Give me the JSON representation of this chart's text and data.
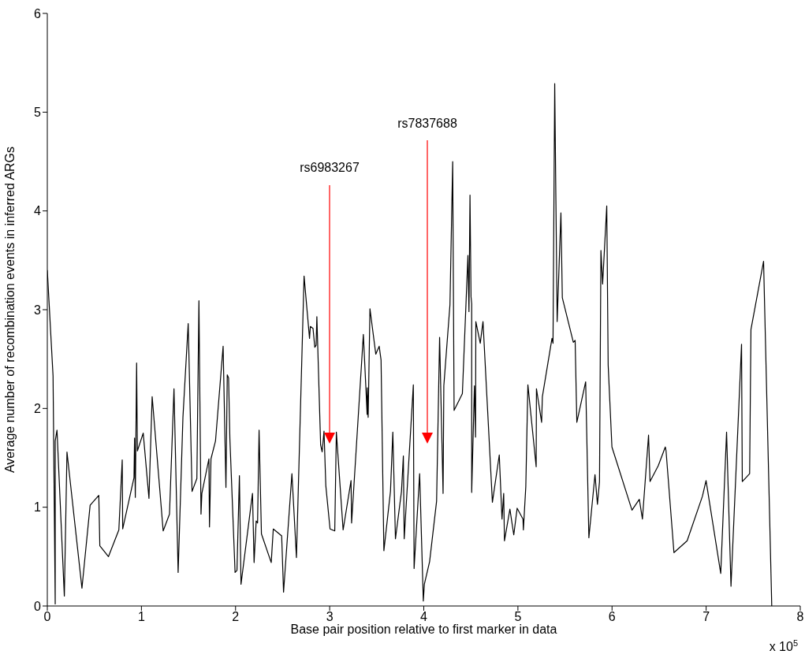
{
  "chart_data": {
    "type": "line",
    "xlabel": "Base pair position relative to first marker in data",
    "ylabel": "Average number of recombination events in inferred ARGs",
    "x": [
      0,
      0.061,
      0.084,
      0.084,
      0.103,
      0.181,
      0.209,
      0.368,
      0.455,
      0.547,
      0.558,
      0.65,
      0.76,
      0.796,
      0.801,
      0.921,
      0.927,
      0.935,
      0.949,
      0.957,
      1.019,
      1.08,
      1.114,
      1.231,
      1.298,
      1.346,
      1.39,
      1.441,
      1.497,
      1.538,
      1.589,
      1.611,
      1.633,
      1.642,
      1.717,
      1.723,
      1.739,
      1.787,
      1.868,
      1.898,
      1.912,
      1.926,
      1.94,
      1.995,
      2.015,
      2.041,
      2.058,
      2.18,
      2.197,
      2.219,
      2.234,
      2.25,
      2.275,
      2.379,
      2.401,
      2.49,
      2.51,
      2.599,
      2.647,
      2.728,
      2.786,
      2.795,
      2.823,
      2.842,
      2.856,
      2.864,
      2.904,
      2.92,
      2.94,
      2.959,
      3.004,
      3.054,
      3.071,
      3.143,
      3.227,
      3.233,
      3.358,
      3.398,
      3.4,
      3.409,
      3.428,
      3.49,
      3.526,
      3.546,
      3.576,
      3.646,
      3.671,
      3.699,
      3.763,
      3.783,
      3.792,
      3.889,
      3.897,
      3.956,
      3.995,
      4.006,
      4.062,
      4.136,
      4.168,
      4.205,
      4.213,
      4.278,
      4.307,
      4.322,
      4.41,
      4.469,
      4.48,
      4.491,
      4.502,
      4.509,
      4.509,
      4.538,
      4.55,
      4.553,
      4.6,
      4.629,
      4.729,
      4.802,
      4.831,
      4.849,
      4.857,
      4.915,
      4.956,
      4.992,
      5.054,
      5.058,
      5.084,
      5.106,
      5.194,
      5.197,
      5.252,
      5.26,
      5.362,
      5.373,
      5.391,
      5.417,
      5.457,
      5.472,
      5.589,
      5.608,
      5.626,
      5.72,
      5.754,
      5.819,
      5.845,
      5.867,
      5.882,
      5.9,
      5.944,
      5.959,
      5.999,
      6.212,
      6.29,
      6.323,
      6.388,
      6.404,
      6.491,
      6.566,
      6.574,
      6.658,
      6.798,
      6.96,
      6.999,
      7.155,
      7.217,
      7.264,
      7.376,
      7.384,
      7.462,
      7.476,
      7.61,
      7.697
    ],
    "series": [
      {
        "color": "#000000",
        "values": [
          3.4,
          2.33,
          0.02,
          1.67,
          1.78,
          0.1,
          1.56,
          0.18,
          1.02,
          1.12,
          0.61,
          0.5,
          0.77,
          1.48,
          0.78,
          1.3,
          1.7,
          1.1,
          2.46,
          1.57,
          1.75,
          1.09,
          2.12,
          0.76,
          0.93,
          2.2,
          0.34,
          1.91,
          2.86,
          1.16,
          1.29,
          3.09,
          0.93,
          1.14,
          1.49,
          0.8,
          1.49,
          1.67,
          2.63,
          1.2,
          2.34,
          2.31,
          1.69,
          0.34,
          0.36,
          1.32,
          0.22,
          1.14,
          0.44,
          0.86,
          0.84,
          1.78,
          0.73,
          0.44,
          0.78,
          0.71,
          0.14,
          1.34,
          0.49,
          3.34,
          2.71,
          2.83,
          2.81,
          2.62,
          2.64,
          2.93,
          1.63,
          1.56,
          1.77,
          1.22,
          0.78,
          0.76,
          1.76,
          0.77,
          1.27,
          0.84,
          2.75,
          1.94,
          2.21,
          1.91,
          3.01,
          2.55,
          2.63,
          2.49,
          0.56,
          1.16,
          1.76,
          0.68,
          1.16,
          1.52,
          0.68,
          2.24,
          0.38,
          1.34,
          0.05,
          0.22,
          0.45,
          1.06,
          2.72,
          1.14,
          2.23,
          3.05,
          4.5,
          1.98,
          2.15,
          3.55,
          2.98,
          4.16,
          3.13,
          3.06,
          1.15,
          2.23,
          1.71,
          2.88,
          2.66,
          2.88,
          1.05,
          1.53,
          0.88,
          1.14,
          0.66,
          0.98,
          0.72,
          0.99,
          0.88,
          0.77,
          1.21,
          2.24,
          1.41,
          2.2,
          1.86,
          2.12,
          2.71,
          2.66,
          5.29,
          2.88,
          3.98,
          3.12,
          2.67,
          2.69,
          1.86,
          2.27,
          0.69,
          1.33,
          1.03,
          1.26,
          3.6,
          3.26,
          4.05,
          2.44,
          1.61,
          0.97,
          1.08,
          0.88,
          1.73,
          1.26,
          1.42,
          1.61,
          1.57,
          0.54,
          0.66,
          1.11,
          1.27,
          0.33,
          1.76,
          0.2,
          2.65,
          1.26,
          1.34,
          2.8,
          3.49,
          0
        ]
      }
    ],
    "xlim": [
      0,
      8
    ],
    "xticks": [
      0,
      1,
      2,
      3,
      4,
      5,
      6,
      7,
      8
    ],
    "ylim": [
      0,
      6
    ],
    "yticks": [
      0,
      1,
      2,
      3,
      4,
      5,
      6
    ],
    "annotations": [
      "rs6983267",
      "rs7837688",
      "x 10$^{5}$"
    ]
  }
}
